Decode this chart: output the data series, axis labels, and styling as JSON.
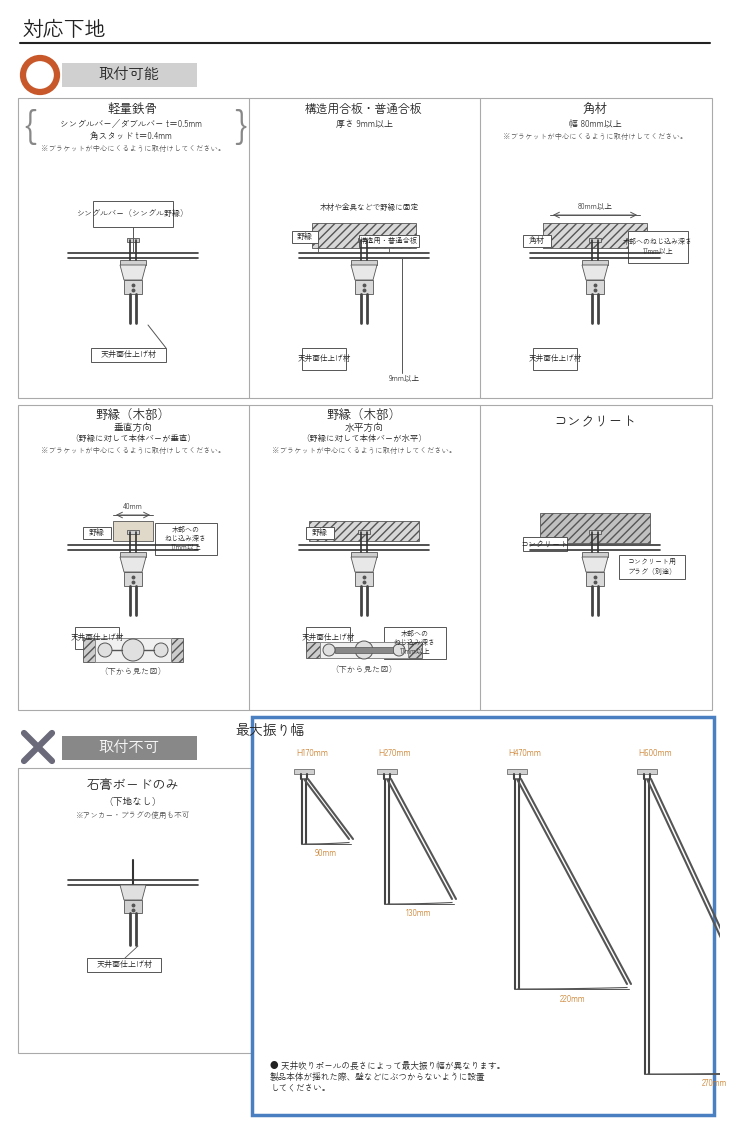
{
  "title": "対応下地",
  "bg_color": "#ffffff",
  "circle_color": "#c8572a",
  "border_color": "#aaaaaa",
  "text_color": "#222222",
  "blue_border": "#4a7fc1",
  "orange_text": "#c87820",
  "gray_text": "#666666",
  "s1_title": "軽量鉄骨",
  "s1_sub1": "シングルバー／ダブルバー t＝0.5mm",
  "s1_sub2": "角スタッド t＝0.4mm",
  "s1_note": "※ブラケットが中心にくるように取付けしてください。",
  "s1_d1": "シングルバー（シングル野縁）",
  "s1_d2": "天井面仕上げ材",
  "s2_title": "構造用合板・普通合板",
  "s2_sub1": "厚さ 9mm以上",
  "s2_d1": "木材や金具などで野縁に固定",
  "s2_d2": "野縁",
  "s2_d3": "構造用・普通合板",
  "s2_d4": "天井面仕上げ材",
  "s2_d5": "9mm以上",
  "s3_title": "角材",
  "s3_sub1": "幅 80mm以上",
  "s3_note": "※ブラケットが中心にくるように取付けしてください。",
  "s3_d1": "80mm以上",
  "s3_d2": "角材",
  "s3_d3": "木部へのねじ込み深さ\n17mm以上",
  "s3_d4": "天井面仕上げ材",
  "s4_title": "野縁（木部）",
  "s4_sub1": "垂直方向",
  "s4_sub2": "（野縁に対して本体バーが垂直）",
  "s4_note": "※ブラケットが中心にくるように取付けしてください。",
  "s4_d1": "40mm",
  "s4_d2": "木部への\nねじ込み深さ\n17mm以上",
  "s4_d3": "野縁",
  "s4_d4": "天井面仕上げ材",
  "s4_d5": "（下から見た図）",
  "s5_title": "野縁（木部）",
  "s5_sub1": "水平方向",
  "s5_sub2": "（野縁に対して本体バーが水平）",
  "s5_note": "※ブラケットが中心にくるように取付けしてください。",
  "s5_d1": "野縁",
  "s5_d2": "天井面仕上げ材",
  "s5_d3": "木部への\nねじ込み深さ\n17mm以上",
  "s5_d4": "（下から見た図）",
  "s6_title": "コンクリート",
  "s6_d1": "コンクリート",
  "s6_d2": "コンクリート用\nプラグ（別途）",
  "s7_title": "石膏ボードのみ",
  "s7_sub1": "（下地なし）",
  "s7_note": "※アンカー・プラグの使用も不可",
  "s7_d1": "天井面仕上げ材",
  "taketsuke_kanou": "取付可能",
  "taketsuke_fuka": "取付不可",
  "swing_title": "最大振り幅",
  "swing_labels": [
    "H170mm",
    "H270mm",
    "H470mm",
    "H600mm"
  ],
  "swing_widths": [
    "90mm",
    "130mm",
    "220mm",
    "270mm"
  ],
  "swing_note": "● 天井吹りポールの長さによって最大振り幅が異なります。\n製品本体が揺れた際、壁などにぶつからないように設置\nしてください。"
}
